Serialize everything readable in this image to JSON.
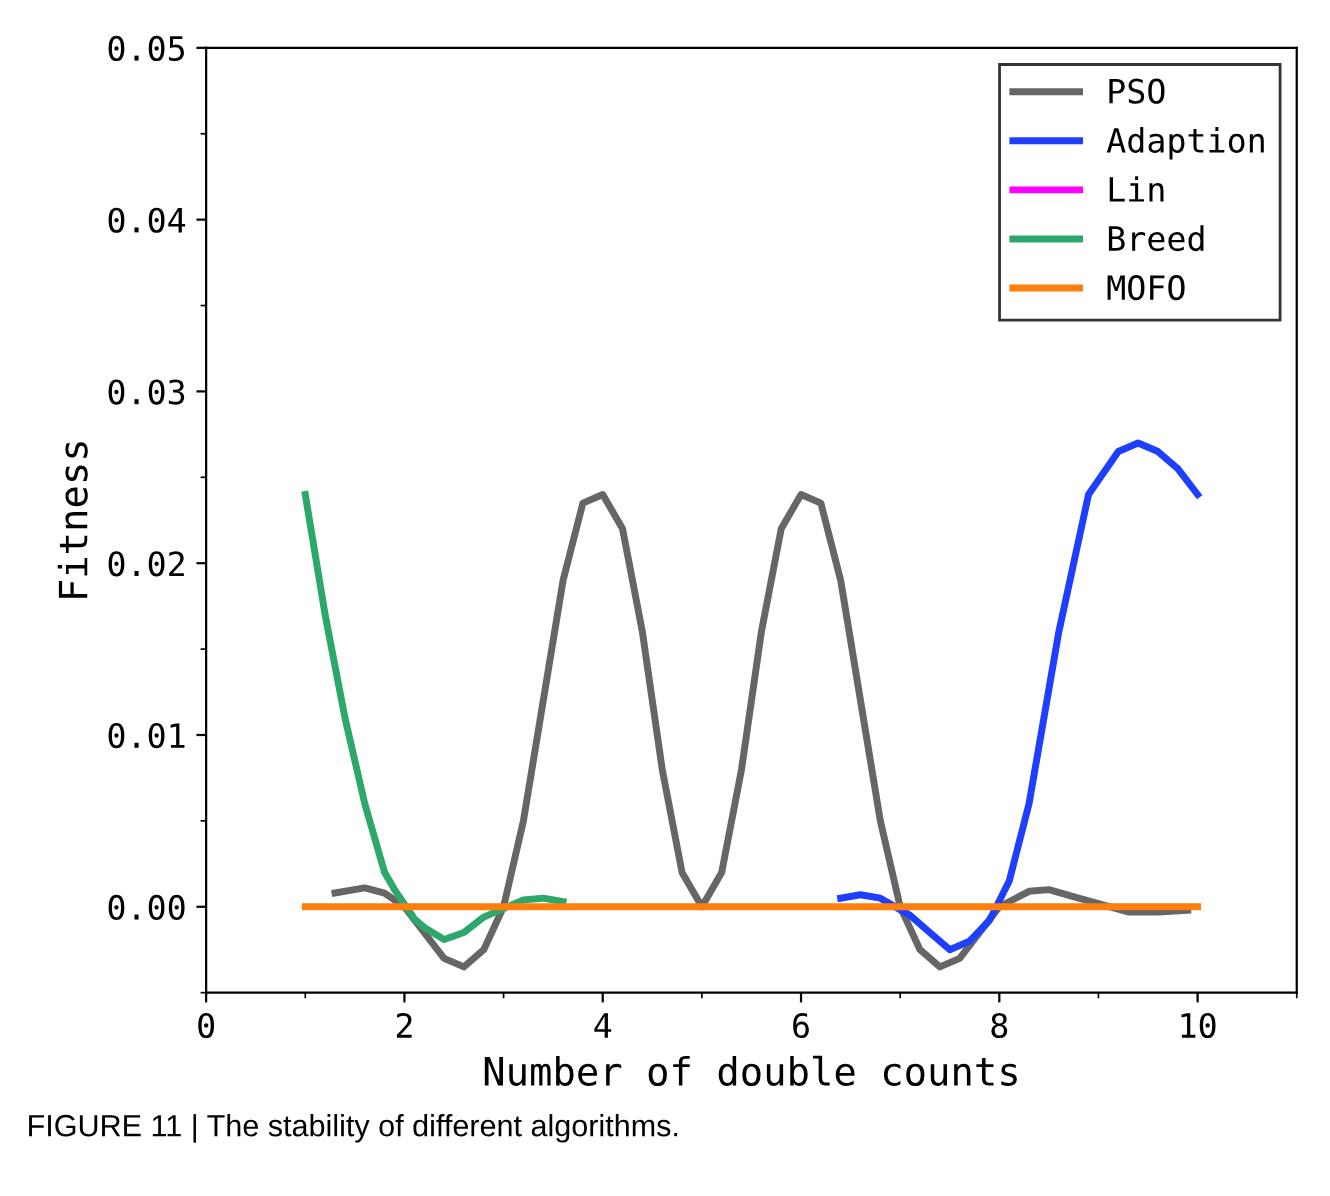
{
  "chart_data": {
    "type": "line",
    "xlabel": "Number of double counts",
    "ylabel": "Fitness",
    "annotations": [
      "FIGURE 11 | The stability of different algorithms."
    ],
    "series": [
      {
        "name": "PSO",
        "color": "#666666",
        "x": [
          1.3,
          1.6,
          1.8,
          2,
          2.2,
          2.4,
          2.6,
          2.8,
          3,
          3.2,
          3.4,
          3.6,
          3.8,
          4,
          4.2,
          4.4,
          4.6,
          4.8,
          5,
          5.2,
          5.4,
          5.6,
          5.8,
          6,
          6.2,
          6.4,
          6.6,
          6.8,
          7,
          7.2,
          7.4,
          7.6,
          7.8,
          8,
          8.3,
          8.5,
          8.8,
          9.3,
          9.6,
          9.9
        ],
        "values": [
          0.0008,
          0.0011,
          0.0008,
          0,
          -0.0015,
          -0.003,
          -0.0035,
          -0.0025,
          0,
          0.005,
          0.012,
          0.019,
          0.0235,
          0.024,
          0.022,
          0.016,
          0.008,
          0.002,
          0,
          0.002,
          0.008,
          0.016,
          0.022,
          0.024,
          0.0235,
          0.019,
          0.012,
          0.005,
          0,
          -0.0025,
          -0.0035,
          -0.003,
          -0.0015,
          0,
          0.0009,
          0.001,
          0.0005,
          -0.0003,
          -0.0003,
          -0.0002
        ]
      },
      {
        "name": "Adaption",
        "color": "#1f3fff",
        "x": [
          6.4,
          6.6,
          6.8,
          7.1,
          7.3,
          7.5,
          7.7,
          7.9,
          8.1,
          8.3,
          8.6,
          8.9,
          9.2,
          9.4,
          9.6,
          9.8,
          10
        ],
        "values": [
          0.0005,
          0.0007,
          0.0005,
          -0.0005,
          -0.0015,
          -0.0025,
          -0.002,
          -0.0008,
          0.0015,
          0.006,
          0.016,
          0.024,
          0.0265,
          0.027,
          0.0265,
          0.0255,
          0.024
        ]
      },
      {
        "name": "Lin",
        "color": "#ff00ff"
      },
      {
        "name": "Breed",
        "color": "#2ca86a",
        "x": [
          1,
          1.2,
          1.4,
          1.6,
          1.8,
          1.9,
          2.1,
          2.2,
          2.4,
          2.6,
          2.8,
          3.2,
          3.4,
          3.6
        ],
        "values": [
          0.024,
          0.017,
          0.011,
          0.006,
          0.002,
          0.001,
          -0.0007,
          -0.0012,
          -0.0019,
          -0.0015,
          -0.0006,
          0.0004,
          0.0005,
          0.0003
        ]
      },
      {
        "name": "MOFO",
        "color": "#ff7f0e",
        "x": [
          1,
          10
        ],
        "values": [
          0,
          0
        ]
      }
    ],
    "xlim": [
      0,
      11
    ],
    "xticks": [
      0,
      2,
      4,
      6,
      8,
      10
    ],
    "ylim": [
      -0.005,
      0.05
    ],
    "yticks": [
      {
        "value": 0,
        "label": "0.00"
      },
      {
        "value": 0.01,
        "label": "0.01"
      },
      {
        "value": 0.02,
        "label": "0.02"
      },
      {
        "value": 0.03,
        "label": "0.03"
      },
      {
        "value": 0.04,
        "label": "0.04"
      },
      {
        "value": 0.05,
        "label": "0.05"
      }
    ],
    "legend": "top right",
    "grid": false,
    "marker": "none",
    "line_style": "solid"
  }
}
